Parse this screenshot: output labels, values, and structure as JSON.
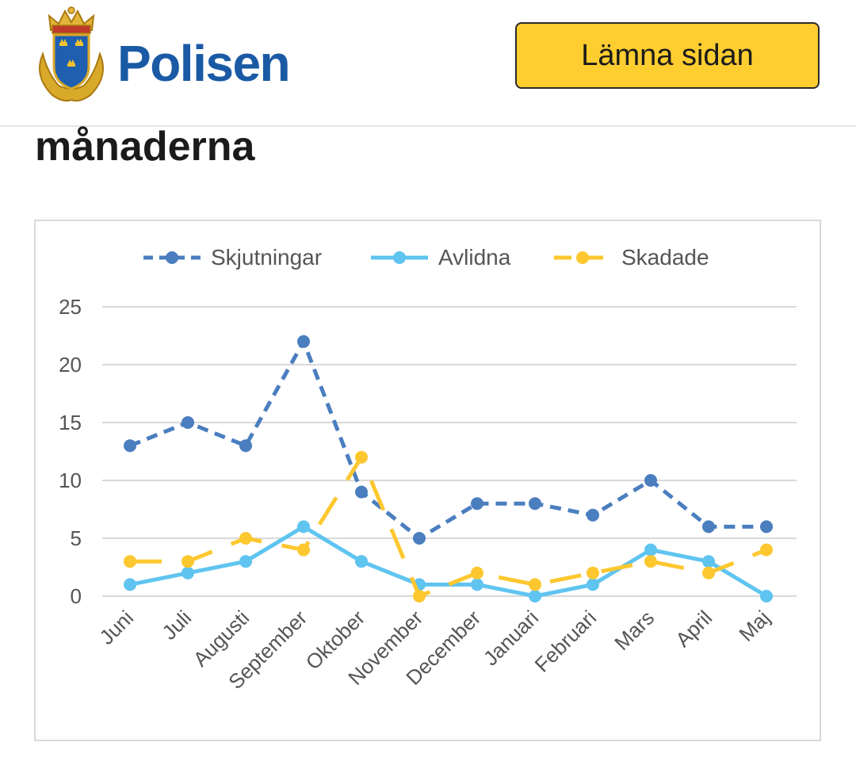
{
  "header": {
    "logo_text": "Polisen",
    "leave_button_label": "Lämna sidan",
    "brand_color": "#1a5aa5",
    "button_color": "#fecd2f"
  },
  "page": {
    "heading": "månaderna"
  },
  "chart_data": {
    "type": "line",
    "title": "",
    "xlabel": "",
    "ylabel": "",
    "ylim": [
      0,
      25
    ],
    "yticks": [
      0,
      5,
      10,
      15,
      20,
      25
    ],
    "grid": true,
    "legend_position": "top",
    "categories": [
      "Juni",
      "Juli",
      "Augusti",
      "September",
      "Oktober",
      "November",
      "December",
      "Januari",
      "Februari",
      "Mars",
      "April",
      "Maj"
    ],
    "series": [
      {
        "name": "Skjutningar",
        "color": "#4a7ebf",
        "style": "dashed",
        "values": [
          13,
          15,
          13,
          22,
          9,
          5,
          8,
          8,
          7,
          10,
          6,
          6
        ]
      },
      {
        "name": "Avlidna",
        "color": "#5fc4f0",
        "style": "solid",
        "values": [
          1,
          2,
          3,
          6,
          3,
          1,
          1,
          0,
          1,
          4,
          3,
          0
        ]
      },
      {
        "name": "Skadade",
        "color": "#fdc72f",
        "style": "long-dash",
        "values": [
          3,
          3,
          5,
          4,
          12,
          0,
          2,
          1,
          2,
          3,
          2,
          4
        ]
      }
    ]
  }
}
